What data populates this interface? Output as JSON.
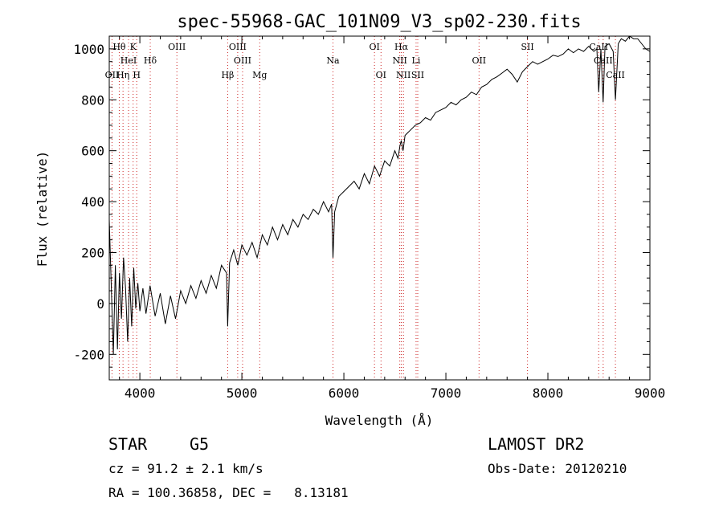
{
  "chart_data": {
    "type": "line",
    "title": "spec-55968-GAC_101N09_V3_sp02-230.fits",
    "xlabel": "Wavelength (Å)",
    "ylabel": "Flux (relative)",
    "xlim": [
      3700,
      9000
    ],
    "ylim": [
      -300,
      1050
    ],
    "grid": false,
    "xticks": [
      4000,
      5000,
      6000,
      7000,
      8000,
      9000
    ],
    "yticks": [
      -200,
      0,
      200,
      400,
      600,
      800,
      1000
    ],
    "series": [
      {
        "color": "#000000",
        "x": [
          3700,
          3740,
          3760,
          3780,
          3800,
          3820,
          3840,
          3860,
          3880,
          3900,
          3920,
          3940,
          3960,
          3980,
          4000,
          4030,
          4060,
          4100,
          4150,
          4200,
          4250,
          4300,
          4350,
          4400,
          4450,
          4500,
          4550,
          4600,
          4650,
          4700,
          4750,
          4800,
          4850,
          4861,
          4880,
          4920,
          4960,
          5000,
          5050,
          5100,
          5150,
          5200,
          5250,
          5300,
          5350,
          5400,
          5450,
          5500,
          5550,
          5600,
          5650,
          5700,
          5750,
          5800,
          5850,
          5880,
          5893,
          5910,
          5950,
          6000,
          6050,
          6100,
          6150,
          6200,
          6250,
          6300,
          6350,
          6400,
          6450,
          6500,
          6530,
          6550,
          6563,
          6580,
          6600,
          6650,
          6700,
          6750,
          6800,
          6850,
          6900,
          6950,
          7000,
          7050,
          7100,
          7150,
          7200,
          7250,
          7300,
          7350,
          7400,
          7450,
          7500,
          7550,
          7600,
          7650,
          7700,
          7750,
          7800,
          7850,
          7900,
          7950,
          8000,
          8050,
          8100,
          8150,
          8200,
          8250,
          8300,
          8350,
          8400,
          8450,
          8480,
          8498,
          8520,
          8542,
          8560,
          8600,
          8640,
          8662,
          8690,
          8720,
          8760,
          8800,
          8840,
          8880,
          8920,
          8960,
          9000
        ],
        "y": [
          330,
          -200,
          150,
          -180,
          120,
          -60,
          180,
          60,
          -150,
          100,
          -90,
          140,
          -20,
          80,
          -30,
          60,
          -40,
          70,
          -50,
          40,
          -80,
          30,
          -60,
          50,
          0,
          70,
          20,
          90,
          40,
          110,
          60,
          150,
          120,
          -90,
          160,
          210,
          150,
          230,
          190,
          240,
          180,
          270,
          230,
          300,
          250,
          310,
          270,
          330,
          300,
          350,
          330,
          370,
          350,
          400,
          360,
          390,
          180,
          360,
          420,
          440,
          460,
          480,
          450,
          510,
          470,
          540,
          500,
          560,
          540,
          600,
          570,
          620,
          640,
          600,
          660,
          680,
          700,
          710,
          730,
          720,
          750,
          760,
          770,
          790,
          780,
          800,
          810,
          830,
          820,
          850,
          860,
          880,
          890,
          905,
          920,
          900,
          870,
          910,
          930,
          950,
          940,
          950,
          960,
          975,
          970,
          980,
          1000,
          985,
          1000,
          990,
          1010,
          990,
          1000,
          830,
          1000,
          790,
          1010,
          1020,
          990,
          800,
          1020,
          1040,
          1030,
          1050,
          1040,
          1040,
          1020,
          1000,
          990
        ]
      }
    ],
    "line_markers": [
      {
        "label": "Hθ",
        "x": 3798,
        "row": 1
      },
      {
        "label": "K",
        "x": 3934,
        "row": 1
      },
      {
        "label": "HeI",
        "x": 3889,
        "row": 2
      },
      {
        "label": "Hδ",
        "x": 4102,
        "row": 2
      },
      {
        "label": "OII",
        "x": 3727,
        "row": 3
      },
      {
        "label": "Hη",
        "x": 3835,
        "row": 3
      },
      {
        "label": "H",
        "x": 3969,
        "row": 3
      },
      {
        "label": "OIII",
        "x": 4363,
        "row": 1
      },
      {
        "label": "OIII",
        "x": 4959,
        "row": 1
      },
      {
        "label": "OIII",
        "x": 5007,
        "row": 2
      },
      {
        "label": "Hβ",
        "x": 4861,
        "row": 3
      },
      {
        "label": "Mg",
        "x": 5175,
        "row": 3
      },
      {
        "label": "Na",
        "x": 5893,
        "row": 2
      },
      {
        "label": "OI",
        "x": 6300,
        "row": 1
      },
      {
        "label": "OI",
        "x": 6364,
        "row": 3
      },
      {
        "label": "Hα",
        "x": 6563,
        "row": 1
      },
      {
        "label": "NII",
        "x": 6548,
        "row": 2
      },
      {
        "label": "Li",
        "x": 6708,
        "row": 2
      },
      {
        "label": "NII",
        "x": 6584,
        "row": 3
      },
      {
        "label": "SII",
        "x": 6724,
        "row": 3
      },
      {
        "label": "OII",
        "x": 7325,
        "row": 2
      },
      {
        "label": "SII",
        "x": 7800,
        "row": 1
      },
      {
        "label": "CaII",
        "x": 8498,
        "row": 1
      },
      {
        "label": "CaII",
        "x": 8542,
        "row": 2
      },
      {
        "label": "CaII",
        "x": 8662,
        "row": 3
      }
    ]
  },
  "footer": {
    "object_class": "STAR",
    "subclass": "G5",
    "release": "LAMOST DR2",
    "velocity": "cz = 91.2 ± 2.1 km/s",
    "obs_date": "Obs-Date: 20120210",
    "coordinates": "RA = 100.36858, DEC =   8.13181"
  }
}
